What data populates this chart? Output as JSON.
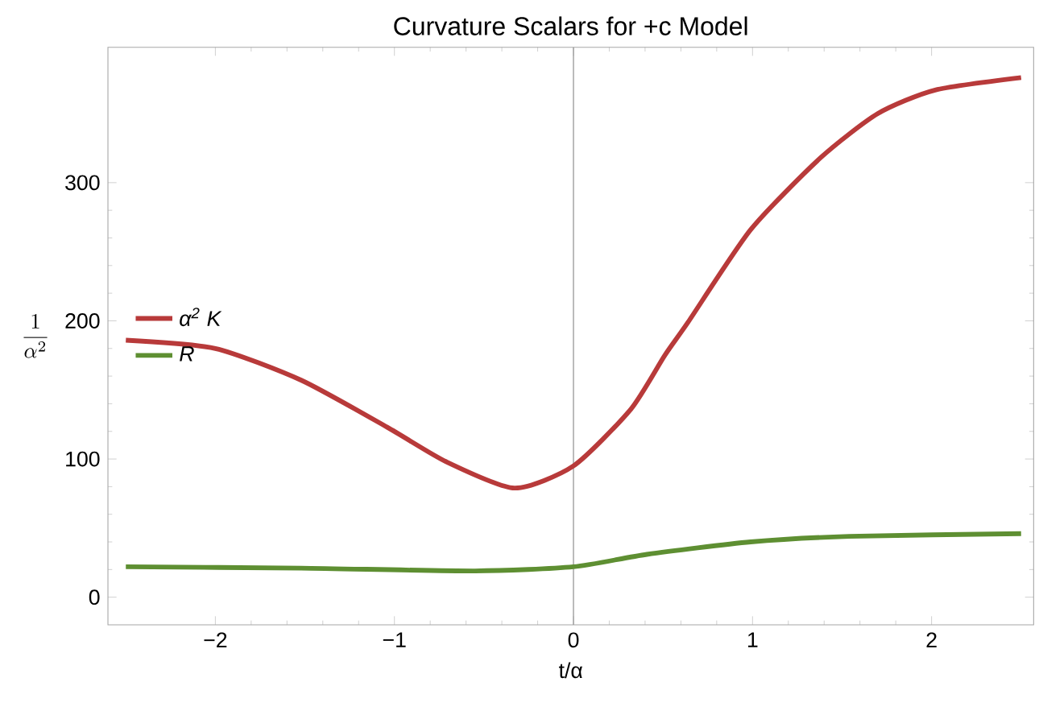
{
  "chart_data": {
    "type": "line",
    "title": "Curvature Scalars for +c Model",
    "xlabel": "t/α",
    "ylabel": "\\frac{1}{\\alpha^{2}}",
    "xlim": [
      -2.6,
      2.57
    ],
    "ylim": [
      -20,
      398
    ],
    "xticks": [
      {
        "value": -2,
        "label": "−2"
      },
      {
        "value": -1,
        "label": "−1"
      },
      0,
      1,
      2
    ],
    "yticks": [
      0,
      100,
      200,
      300
    ],
    "legend": "left",
    "grid": false,
    "marker": "none",
    "line_style": "solid",
    "ref_lines": [
      {
        "axis": "x",
        "value": 0,
        "color": "#999999"
      }
    ],
    "series": [
      {
        "name": "α$^{2}$ K",
        "color": "#b83a3a",
        "x": [
          -2.5,
          -2,
          -1.52,
          -1.04,
          -0.71,
          -0.33,
          0,
          0.32,
          0.51,
          0.64,
          0.99,
          1.38,
          1.7,
          2.02,
          2.5
        ],
        "values": [
          186,
          180,
          157,
          123,
          98,
          79,
          95,
          136,
          175,
          199,
          266,
          318,
          350,
          367,
          376
        ]
      },
      {
        "name": "R",
        "color": "#5e8f32",
        "x": [
          -2.5,
          -1.52,
          -0.55,
          0,
          0.41,
          0.99,
          1.54,
          2.5
        ],
        "values": [
          22,
          21,
          19,
          22,
          31,
          40,
          44,
          46
        ]
      }
    ]
  }
}
